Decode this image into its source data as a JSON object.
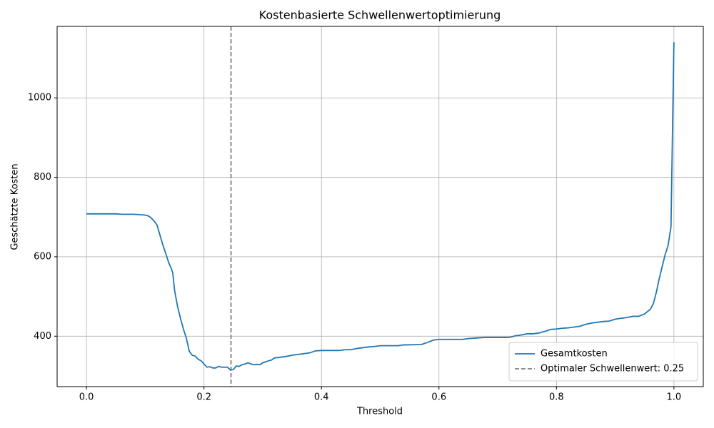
{
  "chart_data": {
    "type": "line",
    "title": "Kostenbasierte Schwellenwertoptimierung",
    "xlabel": "Threshold",
    "ylabel": "Geschätzte Kosten",
    "x": [
      0.0,
      0.05,
      0.06,
      0.08,
      0.09,
      0.1,
      0.105,
      0.11,
      0.115,
      0.12,
      0.125,
      0.13,
      0.135,
      0.14,
      0.145,
      0.147,
      0.15,
      0.155,
      0.16,
      0.165,
      0.17,
      0.175,
      0.18,
      0.185,
      0.19,
      0.195,
      0.2,
      0.205,
      0.21,
      0.215,
      0.22,
      0.225,
      0.23,
      0.235,
      0.24,
      0.245,
      0.25,
      0.255,
      0.26,
      0.265,
      0.27,
      0.275,
      0.28,
      0.285,
      0.29,
      0.295,
      0.3,
      0.31,
      0.315,
      0.32,
      0.33,
      0.34,
      0.35,
      0.36,
      0.37,
      0.38,
      0.39,
      0.4,
      0.43,
      0.44,
      0.45,
      0.46,
      0.47,
      0.48,
      0.49,
      0.5,
      0.53,
      0.54,
      0.57,
      0.58,
      0.59,
      0.6,
      0.64,
      0.65,
      0.66,
      0.68,
      0.72,
      0.73,
      0.74,
      0.75,
      0.76,
      0.77,
      0.78,
      0.79,
      0.8,
      0.81,
      0.82,
      0.83,
      0.84,
      0.85,
      0.86,
      0.87,
      0.88,
      0.89,
      0.9,
      0.91,
      0.92,
      0.93,
      0.94,
      0.95,
      0.96,
      0.965,
      0.97,
      0.975,
      0.98,
      0.985,
      0.99,
      0.995,
      1.0
    ],
    "series": [
      {
        "name": "Gesamtkosten",
        "color": "#1f77b4",
        "values": [
          708,
          708,
          707,
          707,
          706,
          705,
          703,
          698,
          690,
          680,
          655,
          630,
          608,
          585,
          568,
          558,
          515,
          475,
          445,
          418,
          395,
          362,
          352,
          350,
          342,
          338,
          330,
          322,
          323,
          320,
          320,
          324,
          322,
          322,
          322,
          315,
          316,
          325,
          324,
          328,
          330,
          333,
          330,
          328,
          329,
          328,
          333,
          338,
          340,
          345,
          347,
          349,
          352,
          354,
          356,
          358,
          363,
          364,
          364,
          366,
          366,
          369,
          371,
          373,
          374,
          376,
          376,
          378,
          379,
          384,
          390,
          392,
          392,
          394,
          395,
          397,
          397,
          401,
          403,
          406,
          406,
          408,
          412,
          417,
          418,
          420,
          421,
          423,
          425,
          430,
          433,
          435,
          437,
          438,
          443,
          445,
          447,
          450,
          450,
          456,
          468,
          482,
          510,
          545,
          575,
          605,
          628,
          675,
          1140
        ]
      }
    ],
    "vlines": [
      {
        "x": 0.246,
        "name": "Optimaler Schwellenwert: 0.25",
        "color": "#7f7f7f"
      }
    ],
    "xlim": [
      -0.05,
      1.05
    ],
    "ylim": [
      273,
      1180
    ],
    "xticks": [
      {
        "value": 0,
        "label": "0.0"
      },
      0.2,
      0.4,
      0.6,
      0.8,
      {
        "value": 1,
        "label": "1.0"
      }
    ],
    "yticks": [
      400,
      600,
      800,
      1000
    ],
    "grid": true,
    "legend": "lower right"
  }
}
